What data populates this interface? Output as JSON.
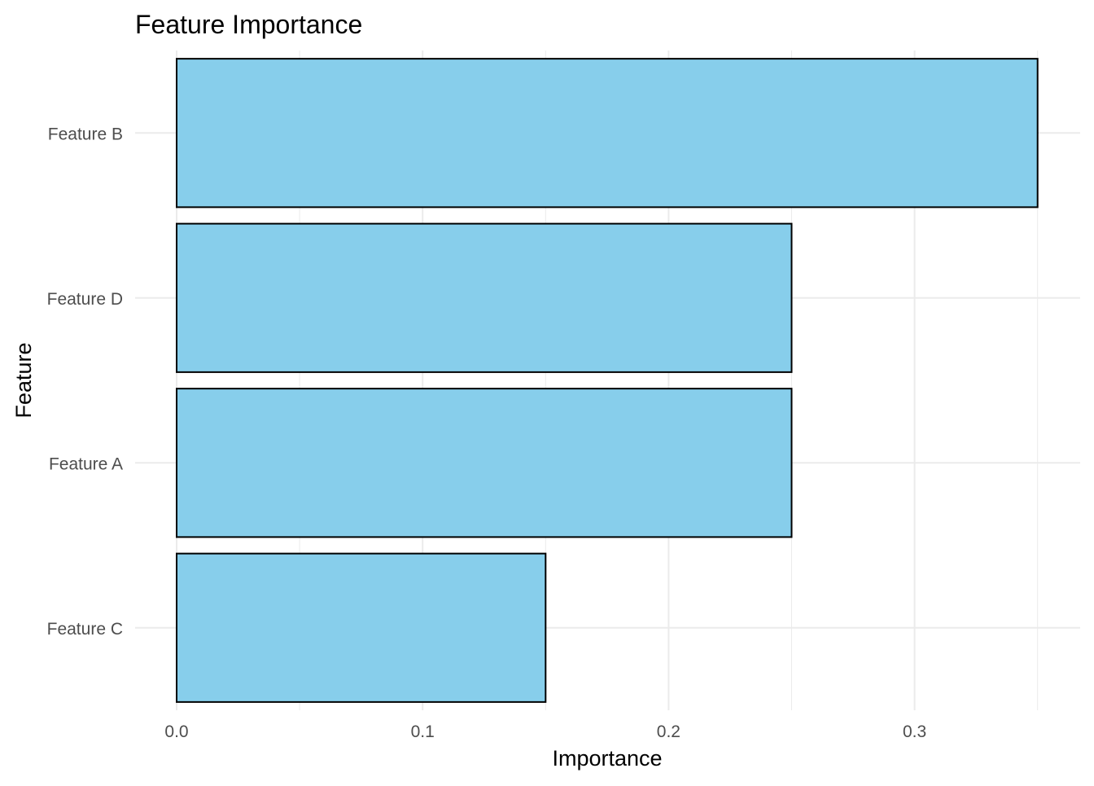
{
  "chart_data": {
    "type": "bar",
    "orientation": "horizontal",
    "title": "Feature Importance",
    "xlabel": "Importance",
    "ylabel": "Feature",
    "categories": [
      "Feature B",
      "Feature D",
      "Feature A",
      "Feature C"
    ],
    "values": [
      0.35,
      0.25,
      0.25,
      0.15
    ],
    "xlim": [
      0,
      0.35
    ],
    "x_ticks": [
      0.0,
      0.1,
      0.2,
      0.3
    ],
    "x_tick_labels": [
      "0.0",
      "0.1",
      "0.2",
      "0.3"
    ],
    "grid": true,
    "legend": "none",
    "bar_fill": "#87CEEB",
    "bar_outline": "#000000",
    "grid_color": "#EBEBEB",
    "tick_label_color": "#4D4D4D"
  }
}
